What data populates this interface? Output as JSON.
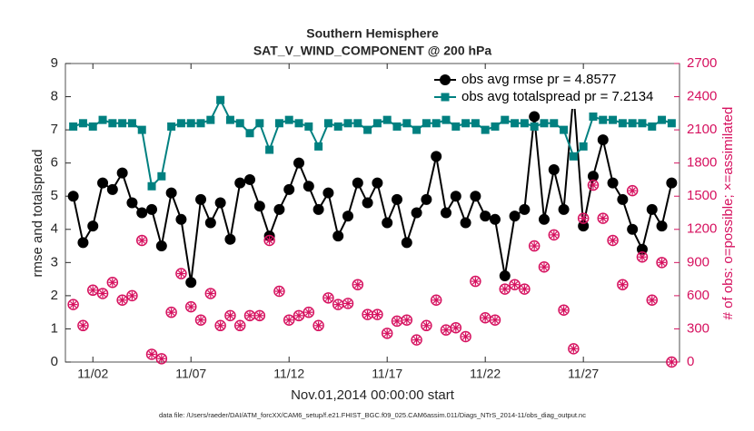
{
  "chart_data": {
    "type": "line",
    "title": "Southern Hemisphere",
    "subtitle": "SAT_V_WIND_COMPONENT @ 200 hPa",
    "xlabel": "Nov.01,2014 00:00:00 start",
    "ylabel": "rmse and totalspread",
    "y2label": "# of obs: o=possible; ×=assimilated",
    "footnote": "data file: /Users/raeder/DAI/ATM_forcXX/CAM6_setup/f.e21.FHIST_BGC.f09_025.CAM6assim.011/Diags_NTrS_2014-11/obs_diag_output.nc",
    "x": [
      1,
      1.5,
      2,
      2.5,
      3,
      3.5,
      4,
      4.5,
      5,
      5.5,
      6,
      6.5,
      7,
      7.5,
      8,
      8.5,
      9,
      9.5,
      10,
      10.5,
      11,
      11.5,
      12,
      12.5,
      13,
      13.5,
      14,
      14.5,
      15,
      15.5,
      16,
      16.5,
      17,
      17.5,
      18,
      18.5,
      19,
      19.5,
      20,
      20.5,
      21,
      21.5,
      22,
      22.5,
      23,
      23.5,
      24,
      24.5,
      25,
      25.5,
      26,
      26.5,
      27,
      27.5,
      28,
      28.5,
      29,
      29.5,
      30,
      30.5,
      31,
      31.5
    ],
    "xlim": [
      0.6,
      31.9
    ],
    "xticks": [
      {
        "value": 2,
        "label": "11/02"
      },
      {
        "value": 7,
        "label": "11/07"
      },
      {
        "value": 12,
        "label": "11/12"
      },
      {
        "value": 17,
        "label": "11/17"
      },
      {
        "value": 22,
        "label": "11/22"
      },
      {
        "value": 27,
        "label": "11/27"
      }
    ],
    "ylim": [
      0,
      9
    ],
    "yticks": [
      0,
      1,
      2,
      3,
      4,
      5,
      6,
      7,
      8,
      9
    ],
    "y2lim": [
      0,
      2700
    ],
    "y2ticks": [
      0,
      300,
      600,
      900,
      1200,
      1500,
      1800,
      2100,
      2400,
      2700
    ],
    "legend": "top-right",
    "series": [
      {
        "name": "obs avg rmse pr = 4.8577",
        "color": "#000000",
        "marker": "circle",
        "values": [
          5.0,
          3.6,
          4.1,
          5.4,
          5.2,
          5.7,
          4.8,
          4.5,
          4.6,
          3.5,
          5.1,
          4.3,
          2.4,
          4.9,
          4.2,
          4.8,
          3.7,
          5.4,
          5.5,
          4.7,
          3.8,
          4.6,
          5.2,
          6.0,
          5.3,
          4.6,
          5.1,
          3.8,
          4.4,
          5.4,
          4.8,
          5.4,
          4.2,
          4.9,
          3.6,
          4.5,
          4.9,
          6.2,
          4.5,
          5.0,
          4.2,
          5.0,
          4.4,
          4.3,
          2.6,
          4.4,
          4.6,
          7.4,
          4.3,
          5.8,
          4.6,
          8.1,
          4.1,
          5.6,
          6.7,
          5.4,
          4.9,
          4.0,
          3.4,
          4.6,
          4.1,
          5.4
        ]
      },
      {
        "name": "obs avg totalspread pr = 7.2134",
        "color": "#008080",
        "marker": "square",
        "values": [
          7.1,
          7.2,
          7.1,
          7.3,
          7.2,
          7.2,
          7.2,
          7.0,
          5.3,
          5.6,
          7.1,
          7.2,
          7.2,
          7.2,
          7.3,
          7.9,
          7.3,
          7.2,
          6.9,
          7.2,
          6.4,
          7.2,
          7.3,
          7.2,
          7.1,
          6.5,
          7.2,
          7.1,
          7.2,
          7.2,
          7.0,
          7.2,
          7.3,
          7.1,
          7.2,
          7.0,
          7.2,
          7.2,
          7.3,
          7.1,
          7.2,
          7.2,
          7.0,
          7.1,
          7.3,
          7.2,
          7.2,
          7.1,
          7.2,
          7.2,
          7.0,
          6.2,
          6.5,
          7.4,
          7.3,
          7.3,
          7.2,
          7.2,
          7.2,
          7.1,
          7.3,
          7.2
        ]
      },
      {
        "color": "#d6115f",
        "marker": "star-circle",
        "axis": "y2",
        "line": false,
        "values": [
          520,
          330,
          650,
          620,
          720,
          560,
          600,
          1100,
          70,
          30,
          450,
          800,
          500,
          380,
          620,
          330,
          420,
          330,
          420,
          420,
          1100,
          640,
          380,
          420,
          450,
          330,
          580,
          520,
          530,
          700,
          430,
          430,
          260,
          370,
          380,
          200,
          330,
          560,
          290,
          310,
          230,
          730,
          400,
          380,
          660,
          700,
          660,
          1050,
          860,
          1150,
          470,
          120,
          1300,
          1600,
          1300,
          1100,
          700,
          1550,
          950,
          560,
          900,
          0
        ]
      }
    ]
  }
}
